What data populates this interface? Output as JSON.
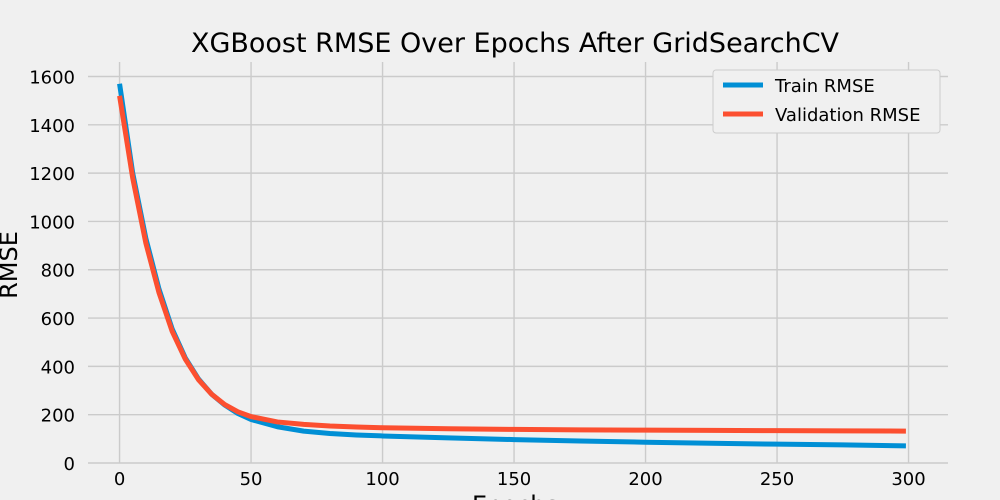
{
  "chart_data": {
    "type": "line",
    "title": "XGBoost RMSE Over Epochs After GridSearchCV",
    "xlabel": "Epochs",
    "ylabel": "RMSE",
    "xlim": [
      -12,
      315
    ],
    "ylim": [
      0,
      1660
    ],
    "xticks": [
      0,
      50,
      100,
      150,
      200,
      250,
      300
    ],
    "yticks": [
      0,
      200,
      400,
      600,
      800,
      1000,
      1200,
      1400,
      1600
    ],
    "grid": true,
    "legend_position": "top-right",
    "x": [
      0,
      5,
      10,
      15,
      20,
      25,
      30,
      35,
      40,
      45,
      50,
      60,
      70,
      80,
      90,
      100,
      125,
      150,
      175,
      200,
      225,
      250,
      275,
      299
    ],
    "series": [
      {
        "name": "Train RMSE",
        "color": "#008fd5",
        "values": [
          1570,
          1200,
          930,
          720,
          555,
          435,
          348,
          285,
          240,
          205,
          180,
          150,
          132,
          122,
          116,
          112,
          104,
          97,
          91,
          86,
          82,
          78,
          75,
          71
        ]
      },
      {
        "name": "Validation RMSE",
        "color": "#fc4f30",
        "values": [
          1520,
          1180,
          910,
          705,
          545,
          430,
          345,
          285,
          242,
          212,
          192,
          170,
          160,
          153,
          149,
          146,
          142,
          139,
          137,
          136,
          135,
          134,
          133,
          132
        ]
      }
    ]
  }
}
